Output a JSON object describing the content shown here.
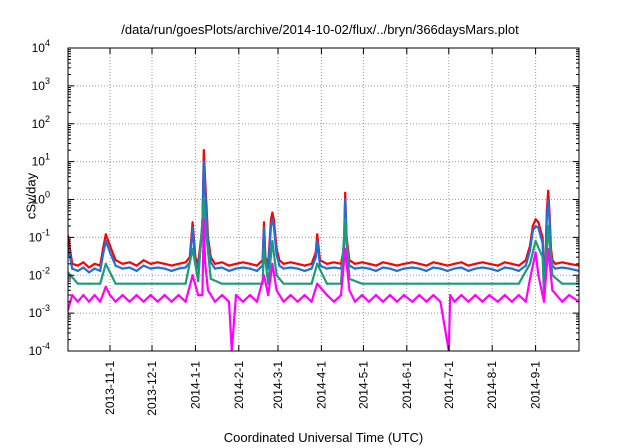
{
  "chart_data": {
    "type": "line",
    "title": "/data/run/goesPlots/archive/2014-10-02/flux/../bryn/366daysMars.plot",
    "xlabel": "Coordinated Universal Time (UTC)",
    "ylabel": "cSv/day",
    "x_scale": "time",
    "y_scale": "log",
    "xlim": [
      "2013-10-02",
      "2014-10-02"
    ],
    "ylim": [
      0.0001,
      10000
    ],
    "grid": true,
    "legend": "none",
    "x_ticks": [
      {
        "date": "2013-11-01",
        "label": "2013-11-1"
      },
      {
        "date": "2013-12-01",
        "label": "2013-12-1"
      },
      {
        "date": "2014-01-01",
        "label": "2014-1-1"
      },
      {
        "date": "2014-02-01",
        "label": "2014-2-1"
      },
      {
        "date": "2014-03-01",
        "label": "2014-3-1"
      },
      {
        "date": "2014-04-01",
        "label": "2014-4-1"
      },
      {
        "date": "2014-05-01",
        "label": "2014-5-1"
      },
      {
        "date": "2014-06-01",
        "label": "2014-6-1"
      },
      {
        "date": "2014-07-01",
        "label": "2014-7-1"
      },
      {
        "date": "2014-08-01",
        "label": "2014-8-1"
      },
      {
        "date": "2014-09-01",
        "label": "2014-9-1"
      }
    ],
    "y_ticks": [
      {
        "value": 0.0001,
        "base": "10",
        "exp": "-4"
      },
      {
        "value": 0.001,
        "base": "10",
        "exp": "-3"
      },
      {
        "value": 0.01,
        "base": "10",
        "exp": "-2"
      },
      {
        "value": 0.1,
        "base": "10",
        "exp": "-1"
      },
      {
        "value": 1,
        "base": "10",
        "exp": "0"
      },
      {
        "value": 10,
        "base": "10",
        "exp": "1"
      },
      {
        "value": 100,
        "base": "10",
        "exp": "2"
      },
      {
        "value": 1000,
        "base": "10",
        "exp": "3"
      },
      {
        "value": 10000,
        "base": "10",
        "exp": "4"
      }
    ],
    "series": [
      {
        "color": "#ff0000",
        "x": [
          "2013-10-02",
          "2013-10-05",
          "2013-10-09",
          "2013-10-13",
          "2013-10-17",
          "2013-10-21",
          "2013-10-25",
          "2013-10-27",
          "2013-10-29",
          "2013-11-01",
          "2013-11-05",
          "2013-11-10",
          "2013-11-15",
          "2013-11-20",
          "2013-11-25",
          "2013-11-30",
          "2013-12-05",
          "2013-12-10",
          "2013-12-15",
          "2013-12-20",
          "2013-12-25",
          "2013-12-28",
          "2013-12-30",
          "2014-01-01",
          "2014-01-03",
          "2014-01-06",
          "2014-01-07",
          "2014-01-08",
          "2014-01-09",
          "2014-01-10",
          "2014-01-12",
          "2014-01-15",
          "2014-01-20",
          "2014-01-25",
          "2014-01-30",
          "2014-02-04",
          "2014-02-09",
          "2014-02-14",
          "2014-02-18",
          "2014-02-19",
          "2014-02-20",
          "2014-02-22",
          "2014-02-24",
          "2014-02-25",
          "2014-02-26",
          "2014-02-28",
          "2014-03-02",
          "2014-03-05",
          "2014-03-10",
          "2014-03-15",
          "2014-03-20",
          "2014-03-25",
          "2014-03-28",
          "2014-03-29",
          "2014-03-31",
          "2014-04-05",
          "2014-04-10",
          "2014-04-15",
          "2014-04-17",
          "2014-04-18",
          "2014-04-19",
          "2014-04-21",
          "2014-04-25",
          "2014-04-30",
          "2014-05-05",
          "2014-05-10",
          "2014-05-15",
          "2014-05-20",
          "2014-05-25",
          "2014-05-30",
          "2014-06-05",
          "2014-06-10",
          "2014-06-15",
          "2014-06-20",
          "2014-06-25",
          "2014-06-30",
          "2014-07-05",
          "2014-07-10",
          "2014-07-15",
          "2014-07-20",
          "2014-07-25",
          "2014-07-30",
          "2014-08-05",
          "2014-08-10",
          "2014-08-15",
          "2014-08-20",
          "2014-08-25",
          "2014-08-28",
          "2014-08-30",
          "2014-09-01",
          "2014-09-03",
          "2014-09-06",
          "2014-09-07",
          "2014-09-08",
          "2014-09-09",
          "2014-09-10",
          "2014-09-11",
          "2014-09-12",
          "2014-09-13",
          "2014-09-15",
          "2014-09-20",
          "2014-09-25",
          "2014-10-02"
        ],
        "values": [
          0.11,
          0.02,
          0.018,
          0.022,
          0.016,
          0.02,
          0.018,
          0.05,
          0.12,
          0.06,
          0.025,
          0.02,
          0.022,
          0.018,
          0.025,
          0.02,
          0.022,
          0.02,
          0.018,
          0.02,
          0.022,
          0.03,
          0.25,
          0.03,
          0.02,
          0.2,
          20.0,
          3.0,
          0.6,
          0.1,
          0.03,
          0.02,
          0.022,
          0.018,
          0.02,
          0.022,
          0.02,
          0.018,
          0.025,
          0.25,
          0.03,
          0.02,
          0.3,
          0.45,
          0.3,
          0.05,
          0.025,
          0.02,
          0.022,
          0.02,
          0.018,
          0.02,
          0.04,
          0.12,
          0.025,
          0.02,
          0.022,
          0.02,
          0.05,
          1.5,
          0.1,
          0.025,
          0.02,
          0.022,
          0.02,
          0.018,
          0.022,
          0.02,
          0.018,
          0.02,
          0.022,
          0.02,
          0.018,
          0.022,
          0.02,
          0.018,
          0.02,
          0.022,
          0.018,
          0.02,
          0.022,
          0.02,
          0.018,
          0.022,
          0.02,
          0.018,
          0.025,
          0.06,
          0.2,
          0.3,
          0.25,
          0.1,
          0.01,
          0.02,
          0.5,
          1.7,
          0.4,
          0.05,
          0.025,
          0.02,
          0.022,
          0.02,
          0.018
        ]
      },
      {
        "color": "#1f6fdc",
        "x": [
          "2013-10-02",
          "2013-10-05",
          "2013-10-09",
          "2013-10-13",
          "2013-10-17",
          "2013-10-21",
          "2013-10-25",
          "2013-10-27",
          "2013-10-29",
          "2013-11-01",
          "2013-11-05",
          "2013-11-10",
          "2013-11-15",
          "2013-11-20",
          "2013-11-25",
          "2013-11-30",
          "2013-12-05",
          "2013-12-10",
          "2013-12-15",
          "2013-12-20",
          "2013-12-25",
          "2013-12-28",
          "2013-12-30",
          "2014-01-01",
          "2014-01-03",
          "2014-01-06",
          "2014-01-07",
          "2014-01-08",
          "2014-01-09",
          "2014-01-10",
          "2014-01-12",
          "2014-01-15",
          "2014-01-20",
          "2014-01-25",
          "2014-01-30",
          "2014-02-04",
          "2014-02-09",
          "2014-02-14",
          "2014-02-18",
          "2014-02-19",
          "2014-02-20",
          "2014-02-22",
          "2014-02-24",
          "2014-02-25",
          "2014-02-26",
          "2014-02-28",
          "2014-03-02",
          "2014-03-05",
          "2014-03-10",
          "2014-03-15",
          "2014-03-20",
          "2014-03-25",
          "2014-03-28",
          "2014-03-29",
          "2014-03-31",
          "2014-04-05",
          "2014-04-10",
          "2014-04-15",
          "2014-04-17",
          "2014-04-18",
          "2014-04-19",
          "2014-04-21",
          "2014-04-25",
          "2014-04-30",
          "2014-05-05",
          "2014-05-10",
          "2014-05-15",
          "2014-05-20",
          "2014-05-25",
          "2014-05-30",
          "2014-06-05",
          "2014-06-10",
          "2014-06-15",
          "2014-06-20",
          "2014-06-25",
          "2014-06-30",
          "2014-07-05",
          "2014-07-10",
          "2014-07-15",
          "2014-07-20",
          "2014-07-25",
          "2014-07-30",
          "2014-08-05",
          "2014-08-10",
          "2014-08-15",
          "2014-08-20",
          "2014-08-25",
          "2014-08-28",
          "2014-08-30",
          "2014-09-01",
          "2014-09-03",
          "2014-09-06",
          "2014-09-07",
          "2014-09-08",
          "2014-09-09",
          "2014-09-10",
          "2014-09-11",
          "2014-09-12",
          "2014-09-13",
          "2014-09-15",
          "2014-09-20",
          "2014-09-25",
          "2014-10-02"
        ],
        "values": [
          0.06,
          0.015,
          0.013,
          0.016,
          0.012,
          0.015,
          0.013,
          0.035,
          0.08,
          0.04,
          0.018,
          0.015,
          0.016,
          0.013,
          0.018,
          0.015,
          0.016,
          0.015,
          0.013,
          0.015,
          0.016,
          0.022,
          0.18,
          0.022,
          0.015,
          0.15,
          10.0,
          1.5,
          0.35,
          0.07,
          0.022,
          0.015,
          0.016,
          0.013,
          0.015,
          0.016,
          0.015,
          0.013,
          0.018,
          0.18,
          0.022,
          0.015,
          0.2,
          0.3,
          0.2,
          0.035,
          0.018,
          0.015,
          0.016,
          0.015,
          0.013,
          0.015,
          0.03,
          0.08,
          0.018,
          0.015,
          0.016,
          0.015,
          0.035,
          1.0,
          0.07,
          0.018,
          0.015,
          0.016,
          0.015,
          0.013,
          0.016,
          0.015,
          0.013,
          0.015,
          0.016,
          0.015,
          0.013,
          0.016,
          0.015,
          0.013,
          0.015,
          0.016,
          0.013,
          0.015,
          0.016,
          0.015,
          0.013,
          0.016,
          0.015,
          0.013,
          0.018,
          0.045,
          0.15,
          0.2,
          0.18,
          0.07,
          0.008,
          0.015,
          0.35,
          0.9,
          0.25,
          0.035,
          0.018,
          0.015,
          0.016,
          0.015,
          0.013
        ]
      },
      {
        "color": "#1e9a78",
        "x": [
          "2013-10-02",
          "2013-10-09",
          "2013-10-17",
          "2013-10-25",
          "2013-10-29",
          "2013-11-05",
          "2013-11-15",
          "2013-11-25",
          "2013-12-05",
          "2013-12-15",
          "2013-12-25",
          "2013-12-30",
          "2014-01-03",
          "2014-01-07",
          "2014-01-09",
          "2014-01-12",
          "2014-01-20",
          "2014-01-30",
          "2014-02-09",
          "2014-02-18",
          "2014-02-19",
          "2014-02-22",
          "2014-02-25",
          "2014-02-28",
          "2014-03-05",
          "2014-03-15",
          "2014-03-25",
          "2014-03-29",
          "2014-04-05",
          "2014-04-15",
          "2014-04-18",
          "2014-04-21",
          "2014-04-30",
          "2014-05-10",
          "2014-05-20",
          "2014-05-30",
          "2014-06-10",
          "2014-06-20",
          "2014-06-30",
          "2014-07-10",
          "2014-07-20",
          "2014-07-30",
          "2014-08-10",
          "2014-08-20",
          "2014-08-28",
          "2014-09-01",
          "2014-09-06",
          "2014-09-07",
          "2014-09-10",
          "2014-09-13",
          "2014-09-20",
          "2014-10-02"
        ],
        "values": [
          0.012,
          0.006,
          0.006,
          0.006,
          0.02,
          0.006,
          0.006,
          0.006,
          0.006,
          0.006,
          0.006,
          0.05,
          0.007,
          1.0,
          0.1,
          0.008,
          0.006,
          0.006,
          0.006,
          0.006,
          0.05,
          0.006,
          0.08,
          0.01,
          0.006,
          0.006,
          0.006,
          0.02,
          0.006,
          0.006,
          0.3,
          0.008,
          0.006,
          0.006,
          0.006,
          0.006,
          0.006,
          0.006,
          0.006,
          0.006,
          0.006,
          0.006,
          0.006,
          0.006,
          0.02,
          0.08,
          0.03,
          0.003,
          0.2,
          0.01,
          0.006,
          0.006
        ]
      },
      {
        "color": "#ff00ff",
        "x": [
          "2013-10-02",
          "2013-10-05",
          "2013-10-09",
          "2013-10-13",
          "2013-10-17",
          "2013-10-21",
          "2013-10-25",
          "2013-10-29",
          "2013-11-01",
          "2013-11-05",
          "2013-11-10",
          "2013-11-15",
          "2013-11-20",
          "2013-11-25",
          "2013-11-30",
          "2013-12-05",
          "2013-12-10",
          "2013-12-15",
          "2013-12-20",
          "2013-12-25",
          "2013-12-30",
          "2014-01-03",
          "2014-01-06",
          "2014-01-07",
          "2014-01-08",
          "2014-01-10",
          "2014-01-15",
          "2014-01-20",
          "2014-01-25",
          "2014-01-27",
          "2014-01-30",
          "2014-02-04",
          "2014-02-09",
          "2014-02-14",
          "2014-02-19",
          "2014-02-22",
          "2014-02-25",
          "2014-02-28",
          "2014-03-05",
          "2014-03-10",
          "2014-03-15",
          "2014-03-20",
          "2014-03-25",
          "2014-03-29",
          "2014-04-05",
          "2014-04-10",
          "2014-04-15",
          "2014-04-18",
          "2014-04-21",
          "2014-04-25",
          "2014-04-30",
          "2014-05-05",
          "2014-05-10",
          "2014-05-15",
          "2014-05-20",
          "2014-05-25",
          "2014-05-30",
          "2014-06-05",
          "2014-06-10",
          "2014-06-15",
          "2014-06-20",
          "2014-06-25",
          "2014-07-01",
          "2014-07-02",
          "2014-07-05",
          "2014-07-10",
          "2014-07-15",
          "2014-07-20",
          "2014-07-25",
          "2014-07-30",
          "2014-08-05",
          "2014-08-10",
          "2014-08-15",
          "2014-08-20",
          "2014-08-25",
          "2014-08-28",
          "2014-09-01",
          "2014-09-03",
          "2014-09-06",
          "2014-09-07",
          "2014-09-10",
          "2014-09-13",
          "2014-09-20",
          "2014-09-25",
          "2014-10-02"
        ],
        "values": [
          0.0012,
          0.003,
          0.002,
          0.003,
          0.002,
          0.003,
          0.002,
          0.005,
          0.003,
          0.002,
          0.003,
          0.002,
          0.003,
          0.002,
          0.003,
          0.002,
          0.003,
          0.002,
          0.003,
          0.002,
          0.01,
          0.003,
          0.003,
          0.3,
          0.02,
          0.004,
          0.002,
          0.003,
          0.002,
          0.0001,
          0.003,
          0.002,
          0.003,
          0.002,
          0.01,
          0.003,
          0.02,
          0.004,
          0.002,
          0.003,
          0.002,
          0.003,
          0.002,
          0.006,
          0.003,
          0.002,
          0.003,
          0.05,
          0.004,
          0.002,
          0.003,
          0.002,
          0.003,
          0.002,
          0.003,
          0.002,
          0.003,
          0.002,
          0.003,
          0.002,
          0.003,
          0.002,
          0.0001,
          0.003,
          0.002,
          0.003,
          0.002,
          0.003,
          0.002,
          0.003,
          0.002,
          0.003,
          0.002,
          0.003,
          0.002,
          0.008,
          0.04,
          0.01,
          0.003,
          0.002,
          0.05,
          0.004,
          0.002,
          0.003,
          0.002
        ]
      }
    ]
  }
}
